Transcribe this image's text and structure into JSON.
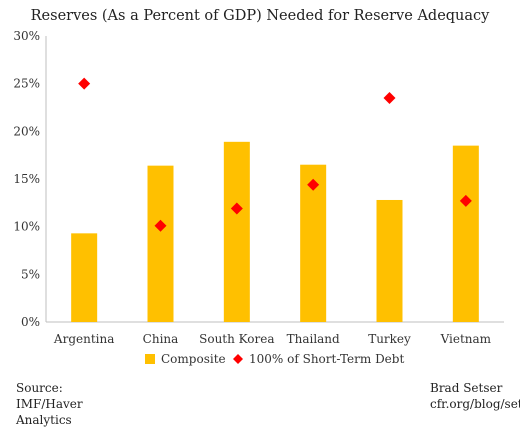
{
  "chart_data": {
    "type": "bar",
    "title": "Reserves (As a Percent of GDP) Needed for Reserve Adequacy",
    "categories": [
      "Argentina",
      "China",
      "South Korea",
      "Thailand",
      "Turkey",
      "Vietnam"
    ],
    "series": [
      {
        "name": "Composite",
        "mark": "bar",
        "color": "#FFC000",
        "values": [
          9.3,
          16.4,
          18.9,
          16.5,
          12.8,
          18.5
        ]
      },
      {
        "name": "100% of Short-Term Debt",
        "mark": "diamond",
        "color": "#FF0000",
        "values": [
          25.0,
          10.1,
          11.9,
          14.4,
          23.5,
          12.7
        ]
      }
    ],
    "ylim": [
      0,
      30
    ],
    "yticks": [
      "0%",
      "5%",
      "10%",
      "15%",
      "20%",
      "25%",
      "30%"
    ],
    "grid": false,
    "legend": "bottom"
  },
  "footer": {
    "source": "Source: IMF/Haver Analytics",
    "author": "Brad Setser",
    "url": "cfr.org/blog/setser"
  }
}
